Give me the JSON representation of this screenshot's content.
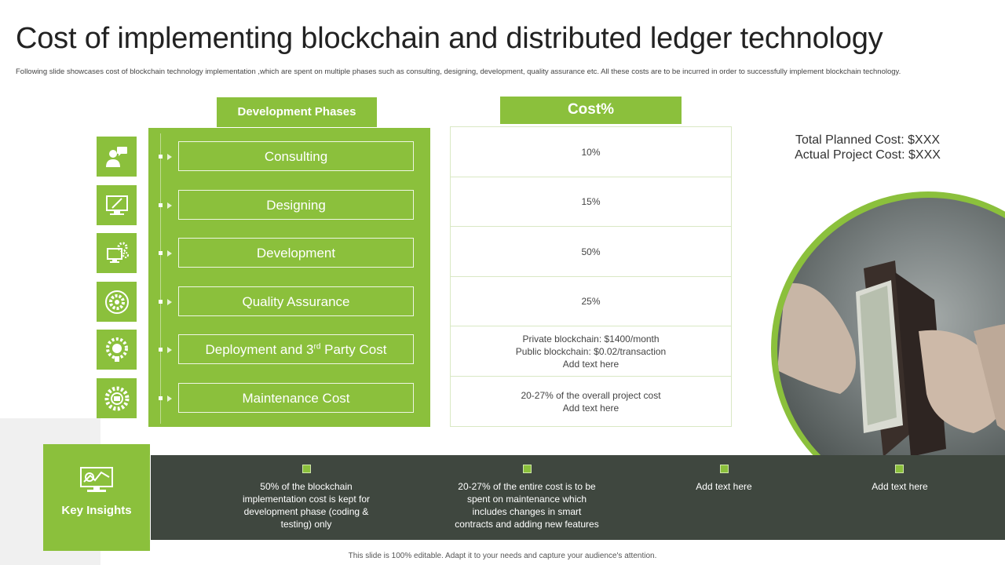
{
  "title": "Cost of implementing blockchain and distributed ledger technology",
  "subtitle": "Following slide showcases cost of blockchain technology implementation ,which are spent on multiple  phases such as consulting, designing, development,  quality assurance etc. All these costs are to be incurred in order to successfully implement blockchain technology.",
  "phases_header": "Development Phases",
  "cost_header": "Cost%",
  "phases": [
    {
      "label": "Consulting",
      "icon": "consultant-chat-icon"
    },
    {
      "label": "Designing",
      "icon": "design-monitor-icon"
    },
    {
      "label": "Development",
      "icon": "development-gears-icon"
    },
    {
      "label": "Quality Assurance",
      "icon": "quality-gear-icon"
    },
    {
      "label_main": "Deployment and 3",
      "label_sup": "rd",
      "label_tail": " Party Cost",
      "icon": "deployment-brain-gear-icon"
    },
    {
      "label": "Maintenance Cost",
      "icon": "maintenance-gear-icon"
    }
  ],
  "costs": [
    [
      "10%"
    ],
    [
      "15%"
    ],
    [
      "50%"
    ],
    [
      "25%"
    ],
    [
      "Private  blockchain: $1400/month",
      "Public blockchain: $0.02/transaction",
      "Add text here"
    ],
    [
      "20-27% of the overall  project cost",
      "Add text here"
    ]
  ],
  "totals": {
    "planned": "Total Planned Cost: $XXX",
    "actual": "Actual Project Cost: $XXX"
  },
  "key_insights": {
    "label": "Key Insights",
    "icon": "monitor-chart-icon",
    "items": [
      [
        "50% of the blockchain",
        "implementation  cost is kept for",
        "development  phase (coding &",
        "testing) only"
      ],
      [
        "20-27% of the entire cost is to be",
        "spent on maintenance which",
        "includes changes in smart",
        "contracts and adding new features"
      ],
      [
        "Add text here"
      ],
      [
        "Add text here"
      ]
    ]
  },
  "footer": "This slide is 100% editable.  Adapt it to your needs and capture your audience's attention.",
  "colors": {
    "accent": "#8bc03c",
    "dark_bar": "#3f473f"
  }
}
